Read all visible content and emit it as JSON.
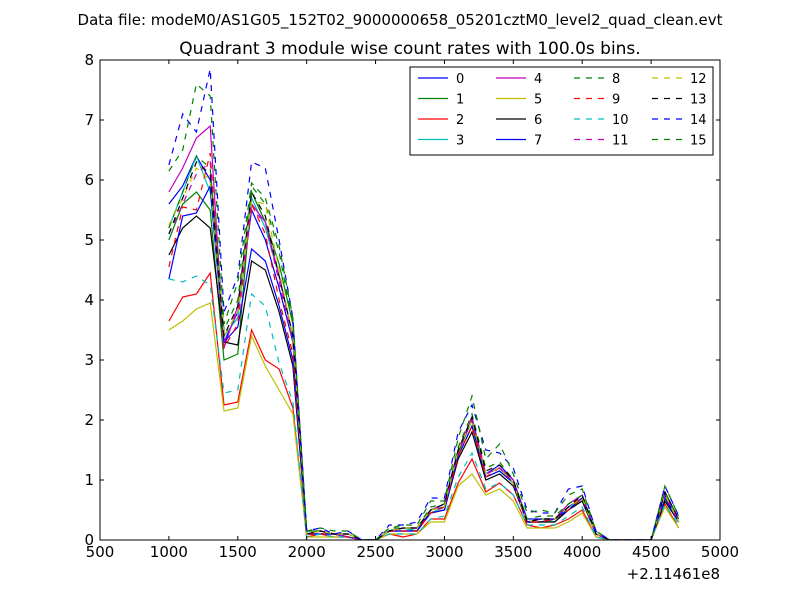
{
  "chart_data": {
    "type": "line",
    "suptitle": "Data file: modeM0/AS1G05_152T02_9000000658_05201cztM0_level2_quad_clean.evt",
    "title": "Quadrant 3 module wise count rates with 100.0s bins.",
    "xlabel": "",
    "ylabel": "",
    "x_offset_label": "+2.11461e8",
    "xlim": [
      500,
      5000
    ],
    "ylim": [
      0,
      8
    ],
    "xticks": [
      500,
      1000,
      1500,
      2000,
      2500,
      3000,
      3500,
      4000,
      4500,
      5000
    ],
    "yticks": [
      0,
      1,
      2,
      3,
      4,
      5,
      6,
      7,
      8
    ],
    "grid": false,
    "legend": {
      "placement": "top-right",
      "columns": 4
    },
    "x": [
      1000,
      1100,
      1200,
      1300,
      1400,
      1500,
      1600,
      1700,
      1800,
      1900,
      2000,
      2100,
      2200,
      2300,
      2400,
      2500,
      2600,
      2700,
      2800,
      2900,
      3000,
      3100,
      3200,
      3300,
      3400,
      3500,
      3600,
      3700,
      3800,
      3900,
      4000,
      4100,
      4200,
      4300,
      4400,
      4500,
      4600,
      4700
    ],
    "series": [
      {
        "name": "0",
        "color": "#0000ff",
        "dash": "solid",
        "values": [
          5.6,
          5.9,
          6.4,
          6.0,
          3.3,
          3.8,
          5.5,
          5.0,
          4.2,
          3.3,
          0.1,
          0.1,
          0.1,
          0.05,
          0.0,
          0.0,
          0.15,
          0.2,
          0.15,
          0.5,
          0.6,
          1.5,
          2.0,
          1.1,
          1.25,
          1.0,
          0.35,
          0.35,
          0.35,
          0.55,
          0.7,
          0.1,
          0.0,
          0.0,
          0.0,
          0.0,
          0.75,
          0.3
        ]
      },
      {
        "name": "1",
        "color": "#008000",
        "dash": "solid",
        "values": [
          5.0,
          5.6,
          5.8,
          5.5,
          3.0,
          3.1,
          5.8,
          5.3,
          4.6,
          3.6,
          0.15,
          0.15,
          0.1,
          0.1,
          0.0,
          0.0,
          0.15,
          0.2,
          0.2,
          0.5,
          0.55,
          1.45,
          2.0,
          1.1,
          1.2,
          0.95,
          0.3,
          0.3,
          0.35,
          0.5,
          0.7,
          0.1,
          0.0,
          0.0,
          0.0,
          0.0,
          0.7,
          0.3
        ]
      },
      {
        "name": "2",
        "color": "#ff0000",
        "dash": "solid",
        "values": [
          3.65,
          4.05,
          4.1,
          4.45,
          2.25,
          2.3,
          3.5,
          3.0,
          2.85,
          2.2,
          0.05,
          0.1,
          0.05,
          0.05,
          0.0,
          0.0,
          0.1,
          0.05,
          0.1,
          0.35,
          0.35,
          0.95,
          1.35,
          0.8,
          0.95,
          0.75,
          0.25,
          0.2,
          0.25,
          0.35,
          0.5,
          0.05,
          0.0,
          0.0,
          0.0,
          0.0,
          0.6,
          0.2
        ]
      },
      {
        "name": "3",
        "color": "#00bfbf",
        "dash": "solid",
        "values": [
          5.2,
          5.8,
          6.4,
          5.8,
          3.4,
          3.7,
          5.7,
          5.2,
          4.4,
          3.4,
          0.1,
          0.15,
          0.1,
          0.05,
          0.0,
          0.0,
          0.15,
          0.2,
          0.15,
          0.45,
          0.55,
          1.4,
          1.9,
          1.05,
          1.15,
          0.95,
          0.3,
          0.35,
          0.3,
          0.55,
          0.65,
          0.1,
          0.0,
          0.0,
          0.0,
          0.0,
          0.7,
          0.3
        ]
      },
      {
        "name": "4",
        "color": "#bf00bf",
        "dash": "solid",
        "values": [
          5.8,
          6.2,
          6.7,
          6.9,
          3.2,
          3.9,
          5.6,
          5.3,
          4.4,
          3.4,
          0.1,
          0.15,
          0.1,
          0.1,
          0.0,
          0.0,
          0.15,
          0.2,
          0.2,
          0.5,
          0.6,
          1.5,
          2.05,
          1.1,
          1.2,
          1.0,
          0.3,
          0.3,
          0.35,
          0.6,
          0.75,
          0.1,
          0.0,
          0.0,
          0.0,
          0.0,
          0.8,
          0.35
        ]
      },
      {
        "name": "5",
        "color": "#bfbf00",
        "dash": "solid",
        "values": [
          3.5,
          3.65,
          3.85,
          3.95,
          2.15,
          2.2,
          3.4,
          2.9,
          2.5,
          2.1,
          0.05,
          0.05,
          0.05,
          0.05,
          0.0,
          0.0,
          0.1,
          0.1,
          0.1,
          0.3,
          0.3,
          0.9,
          1.1,
          0.75,
          0.85,
          0.65,
          0.2,
          0.2,
          0.2,
          0.3,
          0.45,
          0.05,
          0.0,
          0.0,
          0.0,
          0.0,
          0.55,
          0.2
        ]
      },
      {
        "name": "6",
        "color": "#000000",
        "dash": "solid",
        "values": [
          4.75,
          5.2,
          5.4,
          5.2,
          3.3,
          3.25,
          4.65,
          4.5,
          3.8,
          2.9,
          0.1,
          0.1,
          0.1,
          0.05,
          0.0,
          0.0,
          0.15,
          0.15,
          0.15,
          0.45,
          0.5,
          1.35,
          1.8,
          1.0,
          1.1,
          0.9,
          0.3,
          0.3,
          0.3,
          0.5,
          0.65,
          0.1,
          0.0,
          0.0,
          0.0,
          0.0,
          0.65,
          0.3
        ]
      },
      {
        "name": "7",
        "color": "#0000ff",
        "dash": "solid",
        "values": [
          4.35,
          5.4,
          5.45,
          5.9,
          3.3,
          3.55,
          4.85,
          4.65,
          3.9,
          3.0,
          0.1,
          0.1,
          0.1,
          0.05,
          0.0,
          0.0,
          0.15,
          0.15,
          0.15,
          0.45,
          0.5,
          1.4,
          1.9,
          1.05,
          1.15,
          0.95,
          0.3,
          0.35,
          0.35,
          0.5,
          0.7,
          0.1,
          0.0,
          0.0,
          0.0,
          0.0,
          0.7,
          0.3
        ]
      },
      {
        "name": "8",
        "color": "#008000",
        "dash": "dashed",
        "values": [
          5.2,
          5.8,
          6.4,
          6.2,
          3.5,
          4.0,
          5.9,
          5.6,
          4.8,
          3.6,
          0.15,
          0.15,
          0.1,
          0.1,
          0.0,
          0.0,
          0.2,
          0.2,
          0.2,
          0.55,
          0.6,
          1.55,
          2.1,
          1.2,
          1.3,
          1.0,
          0.35,
          0.4,
          0.4,
          0.6,
          0.75,
          0.15,
          0.0,
          0.0,
          0.0,
          0.0,
          0.8,
          0.35
        ]
      },
      {
        "name": "9",
        "color": "#ff0000",
        "dash": "dashed",
        "values": [
          4.55,
          5.55,
          5.5,
          6.45,
          3.2,
          3.6,
          5.6,
          5.1,
          4.0,
          3.1,
          0.1,
          0.1,
          0.1,
          0.05,
          0.0,
          0.0,
          0.15,
          0.15,
          0.15,
          0.45,
          0.55,
          1.4,
          1.9,
          1.05,
          1.2,
          0.95,
          0.3,
          0.3,
          0.35,
          0.5,
          0.7,
          0.1,
          0.0,
          0.0,
          0.0,
          0.0,
          0.75,
          0.3
        ]
      },
      {
        "name": "10",
        "color": "#00bfbf",
        "dash": "dashed",
        "values": [
          4.35,
          4.3,
          4.4,
          4.25,
          2.45,
          2.5,
          4.1,
          3.9,
          2.95,
          2.3,
          0.05,
          0.1,
          0.05,
          0.05,
          0.0,
          0.0,
          0.1,
          0.1,
          0.1,
          0.35,
          0.4,
          1.05,
          1.45,
          0.85,
          0.95,
          0.75,
          0.25,
          0.25,
          0.25,
          0.4,
          0.55,
          0.05,
          0.0,
          0.0,
          0.0,
          0.0,
          0.6,
          0.25
        ]
      },
      {
        "name": "11",
        "color": "#bf00bf",
        "dash": "dashed",
        "values": [
          5.1,
          5.6,
          6.1,
          6.3,
          3.3,
          3.8,
          5.5,
          5.3,
          4.3,
          3.3,
          0.1,
          0.15,
          0.1,
          0.05,
          0.0,
          0.0,
          0.15,
          0.2,
          0.2,
          0.5,
          0.55,
          1.45,
          2.0,
          1.1,
          1.2,
          0.95,
          0.3,
          0.35,
          0.35,
          0.55,
          0.7,
          0.1,
          0.0,
          0.0,
          0.0,
          0.0,
          0.75,
          0.3
        ]
      },
      {
        "name": "12",
        "color": "#bfbf00",
        "dash": "dashed",
        "values": [
          5.25,
          5.7,
          6.2,
          6.0,
          3.4,
          3.8,
          5.65,
          5.6,
          4.5,
          3.4,
          0.1,
          0.15,
          0.1,
          0.1,
          0.0,
          0.0,
          0.15,
          0.2,
          0.2,
          0.5,
          0.55,
          1.5,
          2.0,
          1.1,
          1.2,
          0.95,
          0.3,
          0.35,
          0.35,
          0.55,
          0.7,
          0.1,
          0.0,
          0.0,
          0.0,
          0.0,
          0.75,
          0.3
        ]
      },
      {
        "name": "13",
        "color": "#000000",
        "dash": "dashed",
        "values": [
          5.1,
          5.7,
          6.3,
          6.1,
          3.4,
          3.9,
          5.8,
          5.4,
          4.4,
          3.4,
          0.1,
          0.15,
          0.1,
          0.1,
          0.0,
          0.0,
          0.15,
          0.2,
          0.2,
          0.5,
          0.6,
          1.5,
          2.05,
          1.15,
          1.25,
          1.0,
          0.3,
          0.35,
          0.35,
          0.55,
          0.75,
          0.1,
          0.0,
          0.0,
          0.0,
          0.0,
          0.8,
          0.35
        ]
      },
      {
        "name": "14",
        "color": "#0000ff",
        "dash": "dashed",
        "values": [
          6.25,
          7.1,
          6.8,
          7.85,
          3.8,
          4.4,
          6.3,
          6.2,
          5.0,
          3.7,
          0.15,
          0.2,
          0.1,
          0.15,
          0.0,
          0.0,
          0.25,
          0.25,
          0.3,
          0.7,
          0.7,
          1.8,
          2.25,
          1.5,
          1.45,
          1.2,
          0.5,
          0.45,
          0.45,
          0.85,
          0.9,
          0.15,
          0.0,
          0.0,
          0.0,
          0.0,
          0.9,
          0.4
        ]
      },
      {
        "name": "15",
        "color": "#008000",
        "dash": "dashed",
        "values": [
          6.15,
          6.5,
          7.6,
          7.4,
          3.6,
          4.3,
          5.95,
          5.7,
          4.9,
          3.7,
          0.15,
          0.2,
          0.15,
          0.15,
          0.0,
          0.0,
          0.2,
          0.25,
          0.25,
          0.65,
          0.65,
          1.7,
          2.4,
          1.35,
          1.6,
          1.1,
          0.45,
          0.5,
          0.45,
          0.75,
          0.85,
          0.15,
          0.0,
          0.0,
          0.0,
          0.0,
          0.9,
          0.4
        ]
      }
    ]
  }
}
